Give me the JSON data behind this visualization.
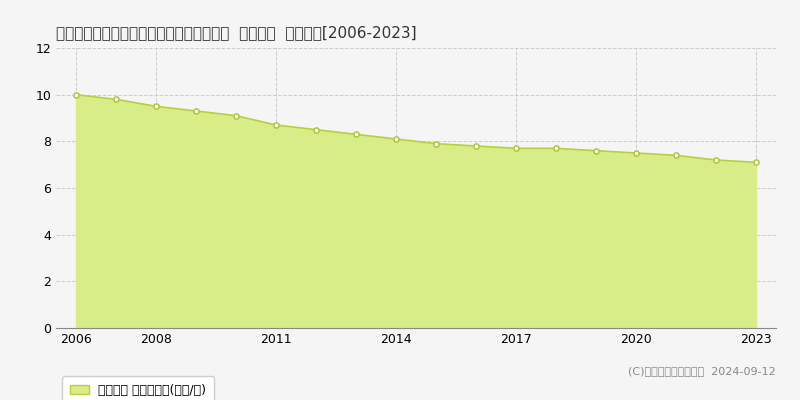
{
  "title": "島根県隠岐郡隠岐の島町有木月無４番７外  地価公示  地価推移[2006-2023]",
  "years": [
    2006,
    2007,
    2008,
    2009,
    2010,
    2011,
    2012,
    2013,
    2014,
    2015,
    2016,
    2017,
    2018,
    2019,
    2020,
    2021,
    2022,
    2023
  ],
  "values": [
    10.0,
    9.8,
    9.5,
    9.3,
    9.1,
    8.7,
    8.5,
    8.3,
    8.1,
    7.9,
    7.8,
    7.7,
    7.7,
    7.6,
    7.5,
    7.4,
    7.2,
    7.1
  ],
  "line_color": "#b8d040",
  "fill_color": "#d8ed88",
  "marker_face": "#ffffff",
  "marker_edge": "#a8c030",
  "bg_color": "#f5f5f5",
  "plot_bg_color": "#f5f5f5",
  "grid_color": "#cccccc",
  "ylim": [
    0,
    12
  ],
  "yticks": [
    0,
    2,
    4,
    6,
    8,
    10,
    12
  ],
  "xticks": [
    2006,
    2008,
    2011,
    2014,
    2017,
    2020,
    2023
  ],
  "legend_label": "地価公示 平均坪単価(万円/坪)",
  "copyright_text": "(C)土地価格ドットコム  2024-09-12",
  "title_fontsize": 11,
  "tick_fontsize": 9,
  "legend_fontsize": 9,
  "copyright_fontsize": 8
}
